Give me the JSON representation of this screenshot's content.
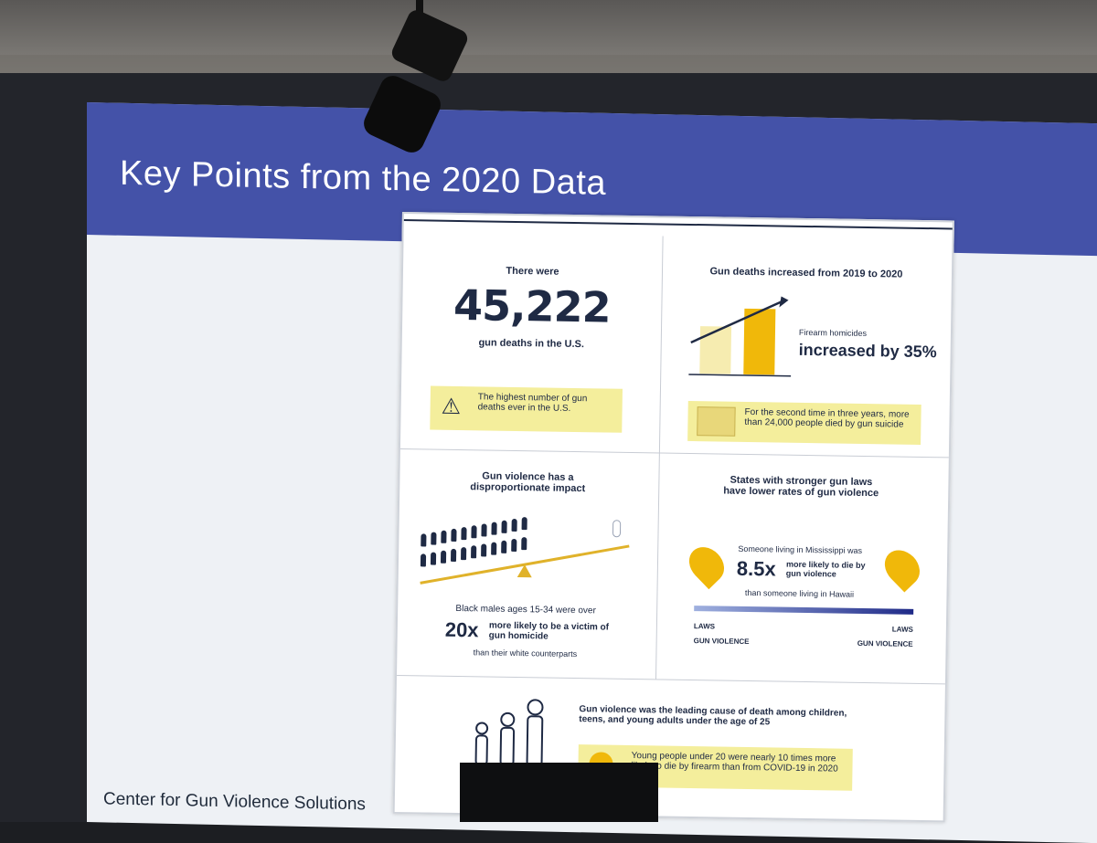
{
  "slide": {
    "title": "Key Points from the 2020 Data",
    "footer": "Center for Gun Violence Solutions"
  },
  "infographic": {
    "panel1": {
      "pre": "There were",
      "number": "45,222",
      "post": "gun deaths in the U.S.",
      "note": "The highest number of gun deaths ever in the U.S."
    },
    "panel2": {
      "title": "Gun deaths increased from 2019 to 2020",
      "label": "Firearm homicides",
      "stat": "increased by 35%",
      "note": "For the second time in three years, more than 24,000 people died by gun suicide"
    },
    "panel3": {
      "title": "Gun violence has a disproportionate impact",
      "pre": "Black males ages 15-34 were over",
      "multiplier": "20x",
      "desc": "more likely to be a victim of gun homicide",
      "post": "than their white counterparts"
    },
    "panel4": {
      "title": "States with stronger gun laws have lower rates of gun violence",
      "pre": "Someone living in Mississippi was",
      "multiplier": "8.5x",
      "desc": "more likely to die by gun violence",
      "post": "than someone living in Hawaii",
      "legend_left_1": "LAWS",
      "legend_left_2": "GUN VIOLENCE",
      "legend_right_1": "LAWS",
      "legend_right_2": "GUN VIOLENCE"
    },
    "panel5": {
      "title": "Gun violence was the leading cause of death among children, teens, and young adults under the age of 25",
      "note": "Young people under 20 were nearly 10 times more likely to die by firearm than from COVID-19 in 2020"
    }
  },
  "colors": {
    "header_blue": "#4452a8",
    "navy": "#1f2a44",
    "accent_yellow": "#f0b80a",
    "note_yellow": "#f4ee9c"
  }
}
